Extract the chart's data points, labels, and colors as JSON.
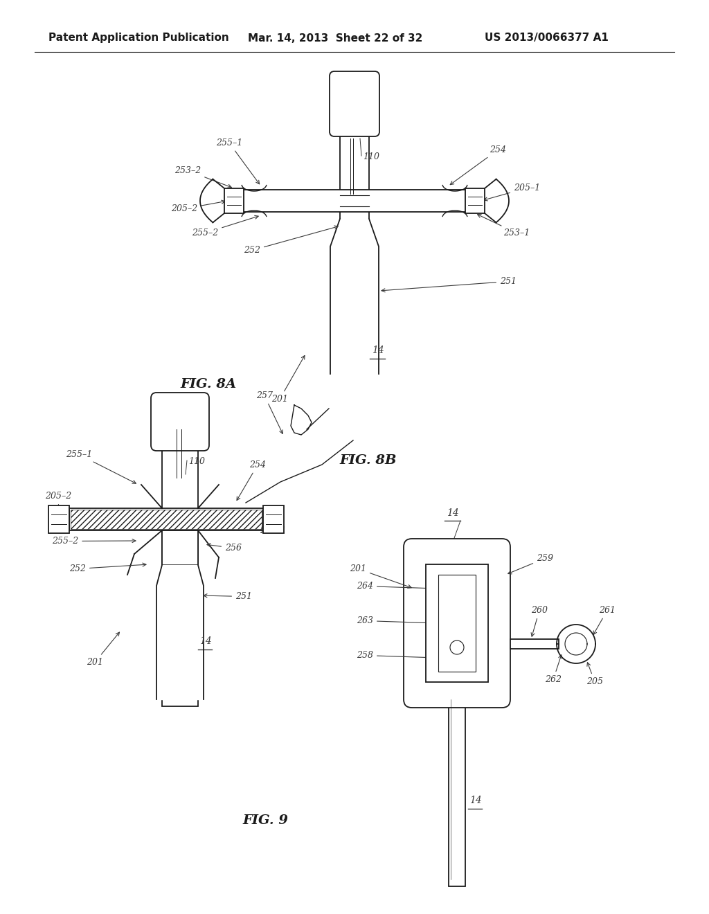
{
  "bg_color": "#ffffff",
  "header_left": "Patent Application Publication",
  "header_mid": "Mar. 14, 2013  Sheet 22 of 32",
  "header_right": "US 2013/0066377 A1",
  "fig8a_label": "FIG. 8A",
  "fig8b_label": "FIG. 8B",
  "fig9_label": "FIG. 9",
  "line_color": "#1a1a1a",
  "label_color": "#3a3a3a",
  "font_size_header": 11,
  "font_size_label": 9,
  "font_size_fig": 14
}
